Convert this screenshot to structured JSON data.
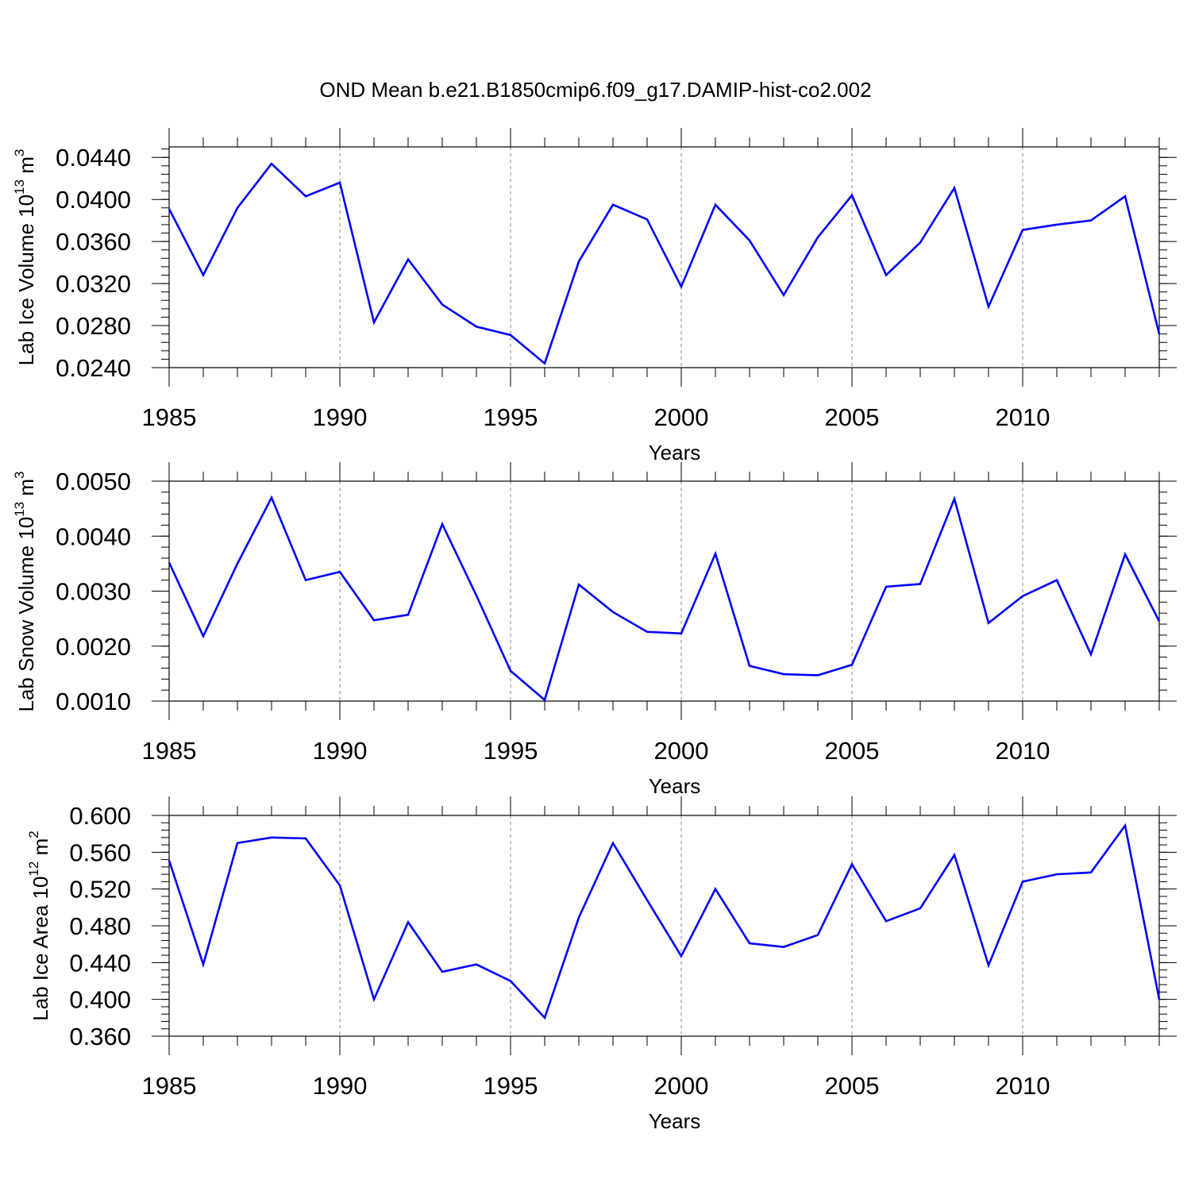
{
  "figure": {
    "title": "OND Mean b.e21.B1850cmip6.f09_g17.DAMIP-hist-co2.002",
    "line_color": "#0000ff",
    "grid_color": "#888888"
  },
  "chart_data": [
    {
      "type": "line",
      "title": "OND Mean b.e21.B1850cmip6.f09_g17.DAMIP-hist-co2.002",
      "ylabel": {
        "main": "Lab Ice Volume 10",
        "exp": "13",
        "unit": " m",
        "unit_exp": "3"
      },
      "xlabel": "Years",
      "xlim": [
        1985,
        2014
      ],
      "ylim": [
        0.024,
        0.045
      ],
      "xticks": [
        1985,
        1990,
        1995,
        2000,
        2005,
        2010
      ],
      "xtick_labels": [
        "1985",
        "1990",
        "1995",
        "2000",
        "2005",
        "2010"
      ],
      "yticks": [
        0.024,
        0.028,
        0.032,
        0.036,
        0.04,
        0.044
      ],
      "ytick_labels": [
        "0.0240",
        "0.0280",
        "0.0320",
        "0.0360",
        "0.0400",
        "0.0440"
      ],
      "y_minor_step": 0.0008,
      "x_minor_step": 1,
      "grid": "dashed vertical at major x ticks",
      "series": [
        {
          "name": "Lab Ice Volume",
          "x": [
            1985,
            1986,
            1987,
            1988,
            1989,
            1990,
            1991,
            1992,
            1993,
            1994,
            1995,
            1996,
            1997,
            1998,
            1999,
            2000,
            2001,
            2002,
            2003,
            2004,
            2005,
            2006,
            2007,
            2008,
            2009,
            2010,
            2011,
            2012,
            2013,
            2014
          ],
          "values": [
            0.0391,
            0.0328,
            0.0392,
            0.0434,
            0.0403,
            0.0416,
            0.0283,
            0.0343,
            0.03,
            0.0279,
            0.0271,
            0.0244,
            0.0341,
            0.0395,
            0.0381,
            0.0317,
            0.0395,
            0.0361,
            0.0309,
            0.0364,
            0.0404,
            0.0328,
            0.0359,
            0.0411,
            0.0298,
            0.0371,
            0.0376,
            0.038,
            0.0403,
            0.0272
          ]
        }
      ]
    },
    {
      "type": "line",
      "ylabel": {
        "main": "Lab Snow Volume 10",
        "exp": "13",
        "unit": " m",
        "unit_exp": "3"
      },
      "xlabel": "Years",
      "xlim": [
        1985,
        2014
      ],
      "ylim": [
        0.001,
        0.005
      ],
      "xticks": [
        1985,
        1990,
        1995,
        2000,
        2005,
        2010
      ],
      "xtick_labels": [
        "1985",
        "1990",
        "1995",
        "2000",
        "2005",
        "2010"
      ],
      "yticks": [
        0.001,
        0.002,
        0.003,
        0.004,
        0.005
      ],
      "ytick_labels": [
        "0.0010",
        "0.0020",
        "0.0030",
        "0.0040",
        "0.0050"
      ],
      "y_minor_step": 0.0002,
      "x_minor_step": 1,
      "grid": "dashed vertical at major x ticks",
      "series": [
        {
          "name": "Lab Snow Volume",
          "x": [
            1985,
            1986,
            1987,
            1988,
            1989,
            1990,
            1991,
            1992,
            1993,
            1994,
            1995,
            1996,
            1997,
            1998,
            1999,
            2000,
            2001,
            2002,
            2003,
            2004,
            2005,
            2006,
            2007,
            2008,
            2009,
            2010,
            2011,
            2012,
            2013,
            2014
          ],
          "values": [
            0.00352,
            0.00218,
            0.0035,
            0.0047,
            0.0032,
            0.00335,
            0.00247,
            0.00257,
            0.00422,
            0.00292,
            0.00155,
            0.00102,
            0.00312,
            0.00262,
            0.00226,
            0.00223,
            0.00368,
            0.00164,
            0.00149,
            0.00147,
            0.00166,
            0.00308,
            0.00313,
            0.00468,
            0.00242,
            0.00291,
            0.0032,
            0.00185,
            0.00367,
            0.00245
          ]
        }
      ]
    },
    {
      "type": "line",
      "ylabel": {
        "main": "Lab Ice Area 10",
        "exp": "12",
        "unit": " m",
        "unit_exp": "2"
      },
      "xlabel": "Years",
      "xlim": [
        1985,
        2014
      ],
      "ylim": [
        0.36,
        0.6
      ],
      "xticks": [
        1985,
        1990,
        1995,
        2000,
        2005,
        2010
      ],
      "xtick_labels": [
        "1985",
        "1990",
        "1995",
        "2000",
        "2005",
        "2010"
      ],
      "yticks": [
        0.36,
        0.4,
        0.44,
        0.48,
        0.52,
        0.56,
        0.6
      ],
      "ytick_labels": [
        "0.360",
        "0.400",
        "0.440",
        "0.480",
        "0.520",
        "0.560",
        "0.600"
      ],
      "y_minor_step": 0.008,
      "x_minor_step": 1,
      "grid": "dashed vertical at major x ticks",
      "series": [
        {
          "name": "Lab Ice Area",
          "x": [
            1985,
            1986,
            1987,
            1988,
            1989,
            1990,
            1991,
            1992,
            1993,
            1994,
            1995,
            1996,
            1997,
            1998,
            1999,
            2000,
            2001,
            2002,
            2003,
            2004,
            2005,
            2006,
            2007,
            2008,
            2009,
            2010,
            2011,
            2012,
            2013,
            2014
          ],
          "values": [
            0.551,
            0.438,
            0.57,
            0.576,
            0.575,
            0.524,
            0.4,
            0.484,
            0.43,
            0.438,
            0.42,
            0.38,
            0.489,
            0.57,
            0.508,
            0.447,
            0.52,
            0.461,
            0.457,
            0.47,
            0.547,
            0.485,
            0.499,
            0.557,
            0.437,
            0.528,
            0.536,
            0.538,
            0.589,
            0.4
          ]
        }
      ]
    }
  ]
}
